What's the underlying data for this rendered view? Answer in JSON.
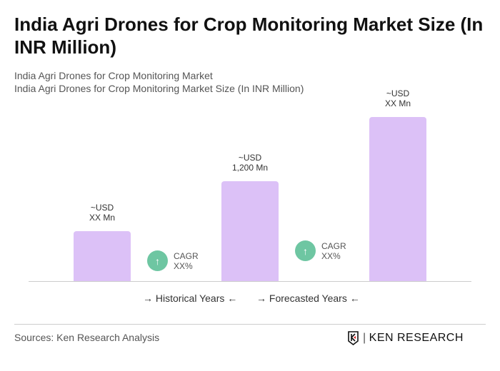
{
  "title": "India Agri Drones for Crop Monitoring Market Size (In INR Million)",
  "subtitle1": "India Agri Drones for Crop Monitoring Market",
  "subtitle2": "India Agri Drones for Crop Monitoring Market Size (In INR Million)",
  "chart_data": {
    "type": "bar",
    "values": [
      600,
      1200,
      1970
    ],
    "data_labels": [
      [
        "~USD",
        "XX Mn"
      ],
      [
        "~USD",
        "1,200 Mn"
      ],
      [
        "~USD",
        "XX Mn"
      ]
    ],
    "bar_color": "#dcc1f7",
    "cagr": [
      {
        "label": "CAGR",
        "value": "XX%"
      },
      {
        "label": "CAGR",
        "value": "XX%"
      }
    ],
    "cagr_color": "#6ec6a2",
    "legend": [
      "Historical Years",
      "Forecasted Years"
    ],
    "grid": false
  },
  "footer": {
    "source": "Sources: Ken Research Analysis",
    "logo": "KEN RESEARCH"
  }
}
